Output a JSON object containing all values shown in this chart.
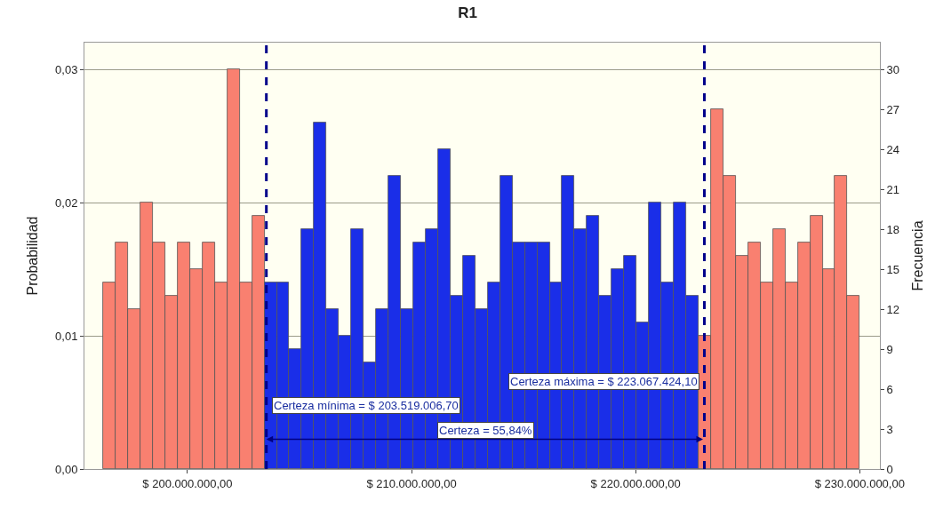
{
  "chart_data": {
    "type": "histogram",
    "title": "R1",
    "ylabel": "Probabilidad",
    "y2label": "Frecuencia",
    "bins": [
      196240000,
      196793500,
      197347000,
      197900500,
      198454000,
      199007500,
      199561000,
      200114500,
      200668000,
      201221500,
      201775000,
      202328500,
      202882000,
      203435500,
      203989000,
      204542500,
      205096000,
      205649500,
      206203000,
      206756500,
      207310000,
      207863500,
      208417000,
      208970500,
      209524000,
      210077500,
      210631000,
      211184500,
      211738000,
      212291500,
      212845000,
      213398500,
      213952000,
      214505500,
      215059000,
      215612500,
      216166000,
      216719500,
      217273000,
      217826500,
      218380000,
      218933500,
      219487000,
      220040500,
      220594000,
      221147500,
      221701000,
      222254500,
      222808000,
      223361500,
      223915000,
      224468500,
      225022000,
      225575500,
      226129000,
      226682500,
      227236000,
      227789500,
      228343000,
      228896500,
      229450000,
      230003500
    ],
    "series": [
      {
        "axis": "y2",
        "values": [
          14,
          17,
          12,
          20,
          17,
          13,
          17,
          15,
          17,
          14,
          30,
          14,
          19,
          14,
          14,
          9,
          18,
          26,
          12,
          10,
          18,
          8,
          12,
          22,
          12,
          17,
          18,
          24,
          13,
          16,
          12,
          14,
          22,
          17,
          17,
          17,
          14,
          22,
          18,
          19,
          13,
          15,
          16,
          11,
          20,
          14,
          20,
          13,
          10,
          27,
          22,
          16,
          17,
          14,
          18,
          14,
          17,
          19,
          15,
          22,
          13
        ],
        "colors": [
          "#f98070",
          "#f98070",
          "#f98070",
          "#f98070",
          "#f98070",
          "#f98070",
          "#f98070",
          "#f98070",
          "#f98070",
          "#f98070",
          "#f98070",
          "#f98070",
          "#f98070",
          "#1a2ee8",
          "#1a2ee8",
          "#1a2ee8",
          "#1a2ee8",
          "#1a2ee8",
          "#1a2ee8",
          "#1a2ee8",
          "#1a2ee8",
          "#1a2ee8",
          "#1a2ee8",
          "#1a2ee8",
          "#1a2ee8",
          "#1a2ee8",
          "#1a2ee8",
          "#1a2ee8",
          "#1a2ee8",
          "#1a2ee8",
          "#1a2ee8",
          "#1a2ee8",
          "#1a2ee8",
          "#1a2ee8",
          "#1a2ee8",
          "#1a2ee8",
          "#1a2ee8",
          "#1a2ee8",
          "#1a2ee8",
          "#1a2ee8",
          "#1a2ee8",
          "#1a2ee8",
          "#1a2ee8",
          "#1a2ee8",
          "#1a2ee8",
          "#1a2ee8",
          "#1a2ee8",
          "#1a2ee8",
          "#f98070",
          "#f98070",
          "#f98070",
          "#f98070",
          "#f98070",
          "#f98070",
          "#f98070",
          "#f98070",
          "#f98070",
          "#f98070",
          "#f98070",
          "#f98070",
          "#f98070"
        ]
      }
    ],
    "xlim": [
      195400000,
      230900000
    ],
    "xticks": [
      {
        "value": 200000000,
        "label": "$ 200.000.000,00"
      },
      {
        "value": 210000000,
        "label": "$ 210.000.000,00"
      },
      {
        "value": 220000000,
        "label": "$ 220.000.000,00"
      },
      {
        "value": 230000000,
        "label": "$ 230.000.000,00"
      }
    ],
    "ylim": [
      0,
      0.032
    ],
    "yticks": [
      {
        "value": 0,
        "label": "0,00"
      },
      {
        "value": 0.01,
        "label": "0,01"
      },
      {
        "value": 0.02,
        "label": "0,02"
      },
      {
        "value": 0.03,
        "label": "0,03"
      }
    ],
    "y2lim": [
      0,
      32
    ],
    "y2ticks": [
      0,
      3,
      6,
      9,
      12,
      15,
      18,
      21,
      24,
      27,
      30
    ],
    "grid": "y",
    "ref_lines": [
      {
        "axis": "x",
        "value": 203519006.7,
        "label": "Certeza mínima = $ 203.519.006,70",
        "color": "#00008b",
        "line_style": "dashed"
      },
      {
        "axis": "x",
        "value": 223067424.1,
        "label": "Certeza máxima = $ 223.067.424,10",
        "color": "#00008b",
        "line_style": "dashed"
      }
    ],
    "annotations": [
      "Certeza = 55,84%"
    ]
  }
}
